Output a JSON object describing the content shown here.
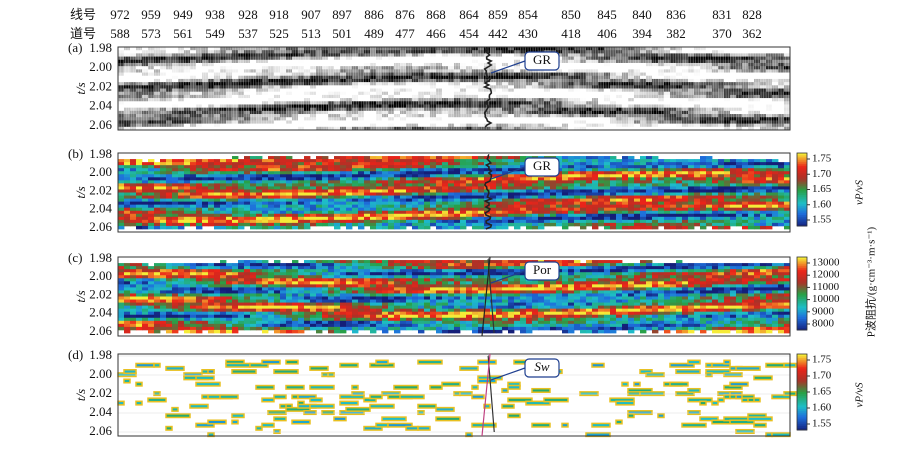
{
  "header": {
    "line_label": "线号",
    "trace_label": "道号",
    "lines": [
      972,
      959,
      949,
      938,
      928,
      918,
      907,
      897,
      886,
      876,
      868,
      864,
      859,
      854,
      850,
      845,
      840,
      836,
      831,
      828
    ],
    "traces": [
      588,
      573,
      561,
      549,
      537,
      525,
      513,
      501,
      489,
      477,
      466,
      454,
      442,
      430,
      418,
      406,
      394,
      382,
      370,
      362
    ]
  },
  "panels": [
    {
      "label": "(a)",
      "y_label": "t/s",
      "yticks": [
        "1.98",
        "2.00",
        "2.02",
        "2.04",
        "2.06"
      ],
      "annotation": "GR"
    },
    {
      "label": "(b)",
      "y_label": "t/s",
      "yticks": [
        "1.98",
        "2.00",
        "2.02",
        "2.04",
        "2.06"
      ],
      "annotation": "GR",
      "colorbar": {
        "ticks": [
          "1.75",
          "1.70",
          "1.65",
          "1.60",
          "1.55"
        ],
        "label": "vP/vS"
      }
    },
    {
      "label": "(c)",
      "y_label": "t/s",
      "yticks": [
        "1.98",
        "2.00",
        "2.02",
        "2.04",
        "2.06"
      ],
      "annotation": "Por",
      "colorbar": {
        "ticks": [
          13000,
          12000,
          11000,
          10000,
          9000,
          8000
        ],
        "label": "P波阻抗/(g·cm⁻³·m·s⁻¹)"
      }
    },
    {
      "label": "(d)",
      "y_label": "t/s",
      "yticks": [
        "1.98",
        "2.00",
        "2.02",
        "2.04",
        "2.06"
      ],
      "annotation": "Sw",
      "colorbar": {
        "ticks": [
          "1.75",
          "1.70",
          "1.65",
          "1.60",
          "1.55"
        ],
        "label": "vP/vS"
      }
    }
  ]
}
